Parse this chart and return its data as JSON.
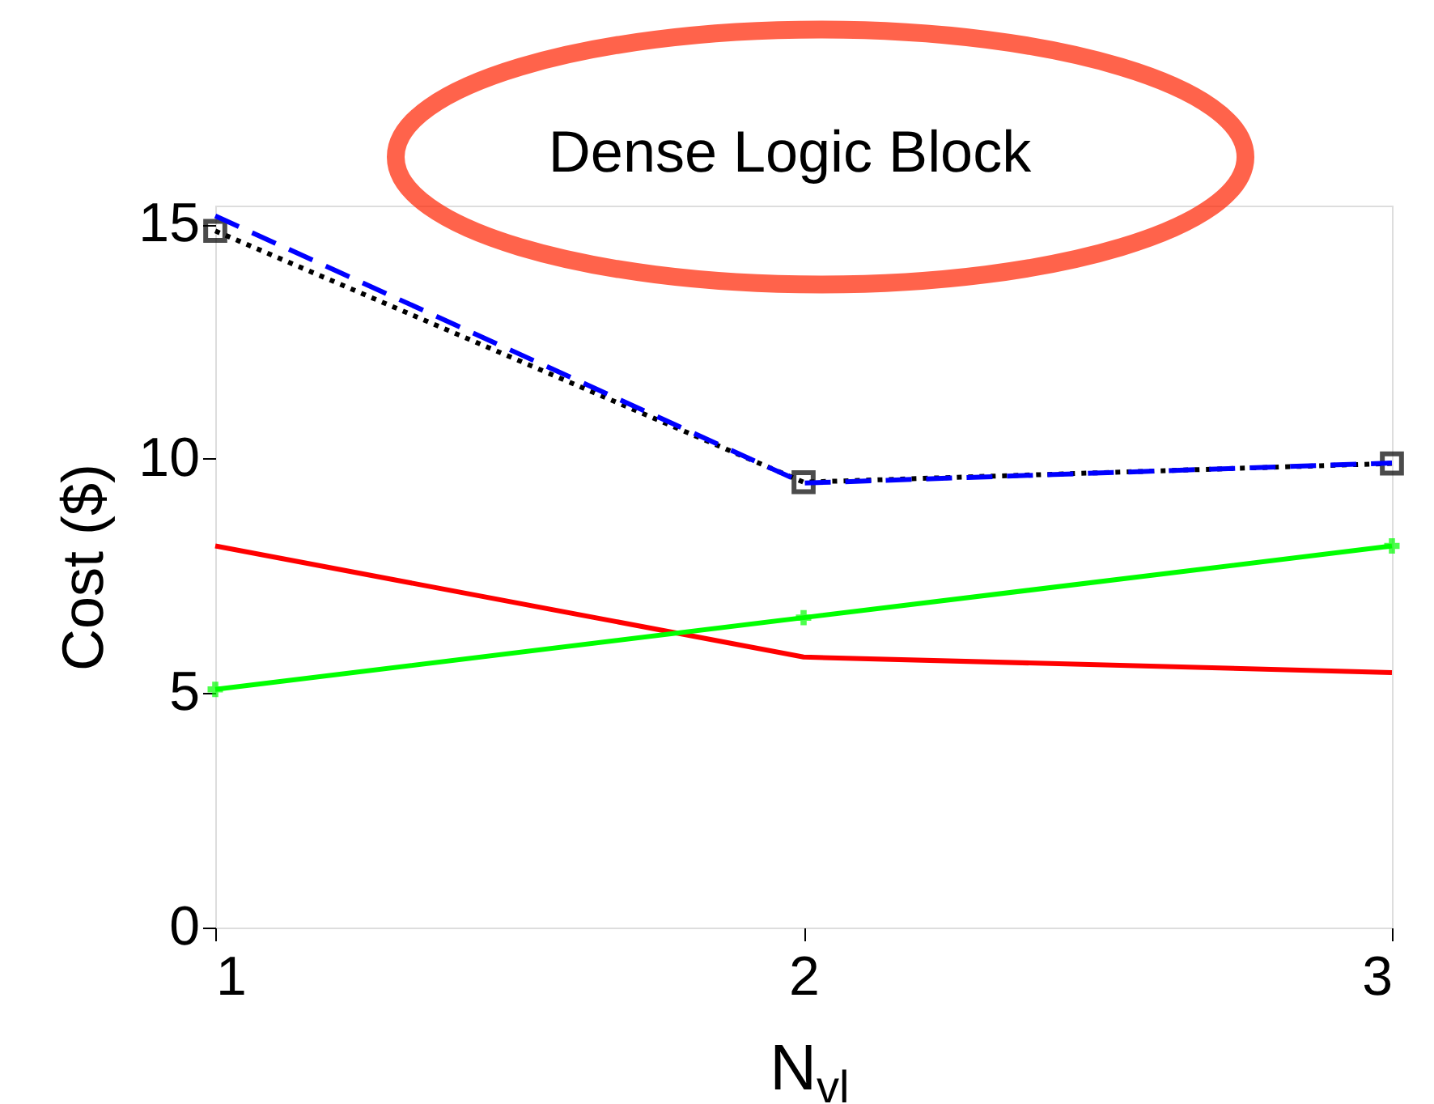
{
  "chart_data": {
    "type": "line",
    "title": "Dense Logic Block",
    "xlabel": "N$_{vl}$",
    "ylabel": "Cost ($)",
    "x": [
      1,
      2,
      3
    ],
    "xlim": [
      1,
      3
    ],
    "xticks": [
      1,
      2,
      3
    ],
    "ylim": [
      0,
      15.4
    ],
    "yticks": [
      0,
      5,
      10,
      15
    ],
    "grid": false,
    "series": [
      {
        "color": "#ff0000",
        "values": [
          8.14,
          5.77,
          5.44
        ],
        "line_style": "solid",
        "marker": "none"
      },
      {
        "color": "#00ff00",
        "values": [
          5.08,
          6.61,
          8.14
        ],
        "line_style": "solid",
        "marker": "cross"
      },
      {
        "color": "#000000",
        "values": [
          14.86,
          9.5,
          9.9
        ],
        "line_style": "dotted",
        "marker": "square"
      },
      {
        "color": "#0000ff",
        "values": [
          15.18,
          9.48,
          9.91
        ],
        "line_style": "dashed",
        "marker": "none"
      }
    ]
  }
}
